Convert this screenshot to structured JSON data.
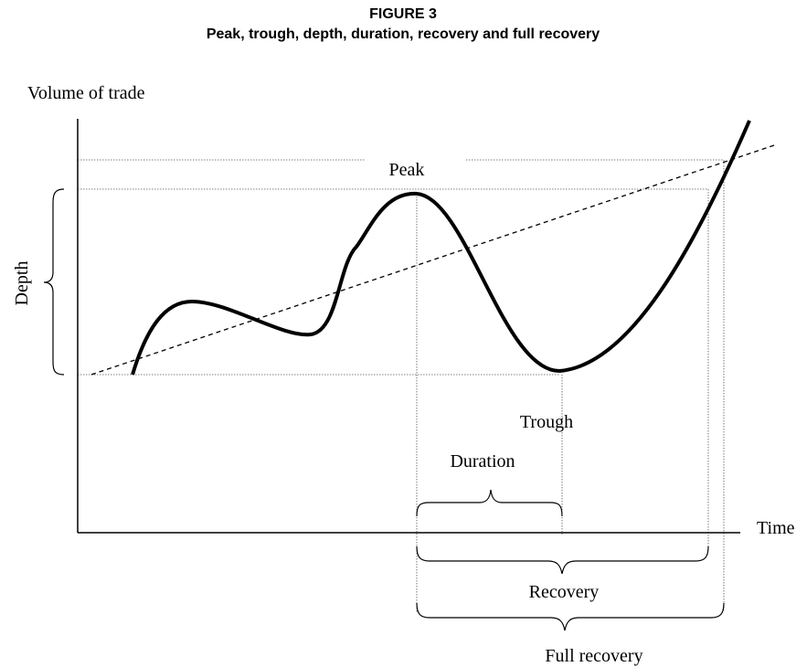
{
  "header": {
    "label": "FIGURE 3",
    "title": "Peak, trough, depth, duration, recovery and full recovery"
  },
  "axes": {
    "y_label": "Volume of trade",
    "x_label": "Time"
  },
  "annotations": {
    "peak": "Peak",
    "trough": "Trough",
    "depth": "Depth",
    "duration": "Duration",
    "recovery": "Recovery",
    "full_recovery": "Full recovery"
  }
}
